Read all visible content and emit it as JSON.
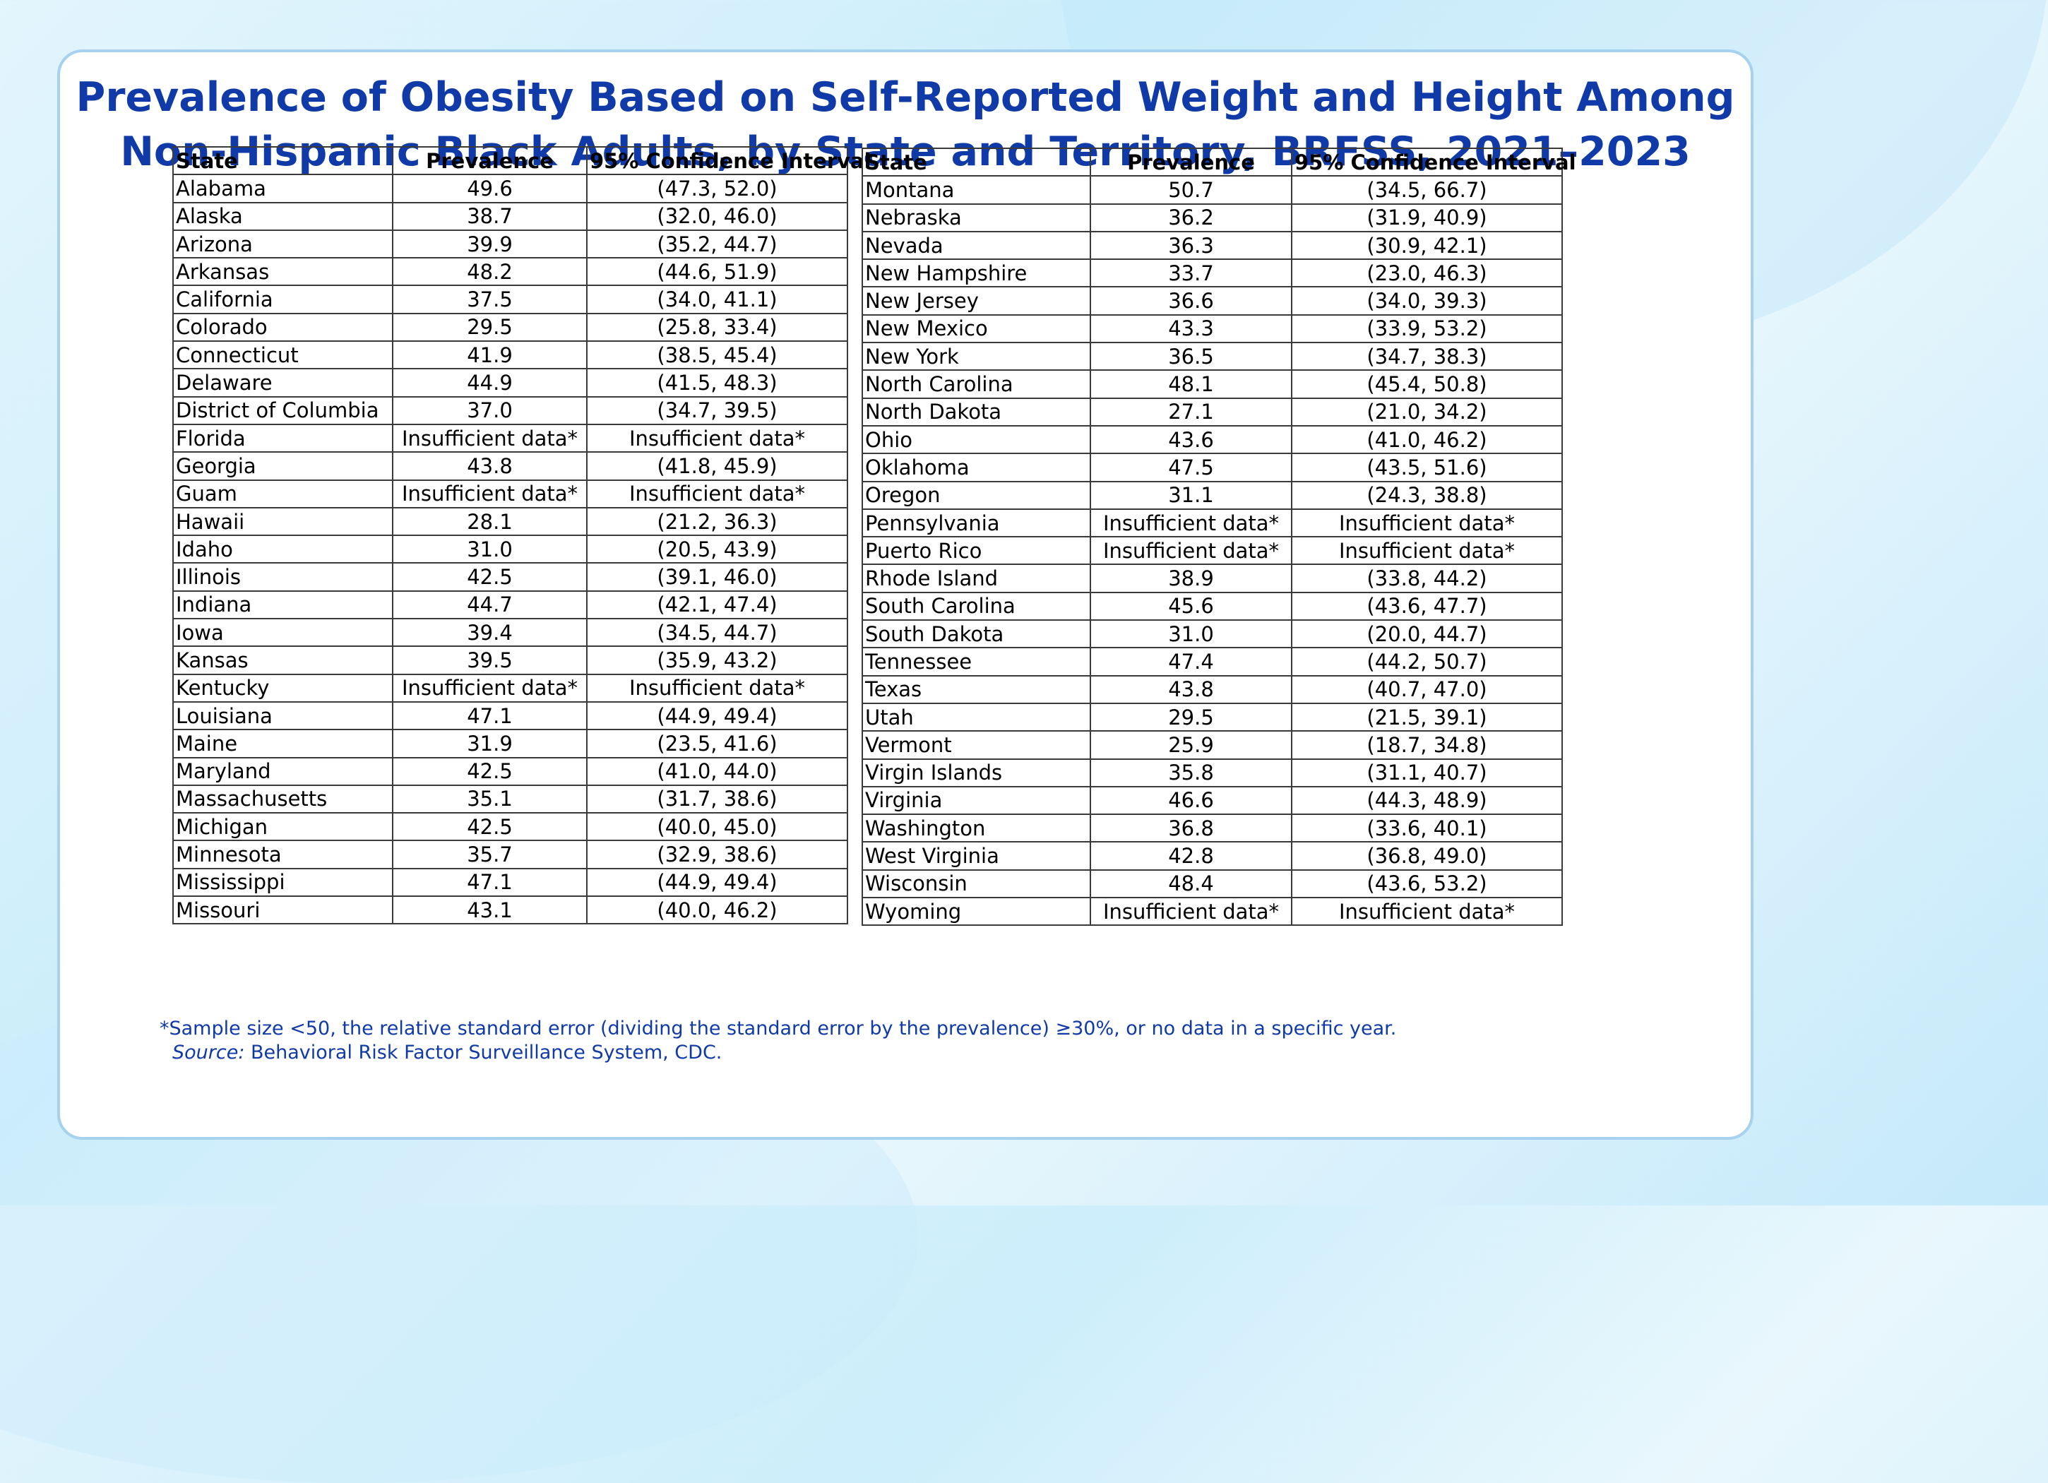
{
  "title_line1": "Prevalence of Obesity Based on Self-Reported Weight and Height Among",
  "title_line2": "Non-Hispanic Black Adults, by State and Territory, BRFSS, 2021–2023",
  "columns": [
    "State",
    "Prevalence",
    "95% Confidence Interval"
  ],
  "footnote": "*Sample size <50, the relative standard error (dividing the standard error by the prevalence) ≥30%, or no data in a specific year.",
  "source_label": "Source:",
  "source_text": " Behavioral Risk Factor Surveillance System, CDC.",
  "colors": {
    "title": "#0f3aa8",
    "footnote": "#0f3aa8",
    "card_border": "#a6d2ef"
  },
  "chart_data": {
    "type": "table",
    "title": "Prevalence of Obesity Based on Self-Reported Weight and Height Among Non-Hispanic Black Adults, by State and Territory, BRFSS, 2021–2023",
    "columns": [
      "State",
      "Prevalence",
      "95% Confidence Interval"
    ],
    "left_rows": [
      [
        "Alabama",
        "49.6",
        "(47.3, 52.0)"
      ],
      [
        "Alaska",
        "38.7",
        "(32.0, 46.0)"
      ],
      [
        "Arizona",
        "39.9",
        "(35.2, 44.7)"
      ],
      [
        "Arkansas",
        "48.2",
        "(44.6, 51.9)"
      ],
      [
        "California",
        "37.5",
        "(34.0, 41.1)"
      ],
      [
        "Colorado",
        "29.5",
        "(25.8, 33.4)"
      ],
      [
        "Connecticut",
        "41.9",
        "(38.5, 45.4)"
      ],
      [
        "Delaware",
        "44.9",
        "(41.5, 48.3)"
      ],
      [
        "District of Columbia",
        "37.0",
        "(34.7, 39.5)"
      ],
      [
        "Florida",
        "Insufficient data*",
        "Insufficient data*"
      ],
      [
        "Georgia",
        "43.8",
        "(41.8, 45.9)"
      ],
      [
        "Guam",
        "Insufficient data*",
        "Insufficient data*"
      ],
      [
        "Hawaii",
        "28.1",
        "(21.2, 36.3)"
      ],
      [
        "Idaho",
        "31.0",
        "(20.5, 43.9)"
      ],
      [
        "Illinois",
        "42.5",
        "(39.1, 46.0)"
      ],
      [
        "Indiana",
        "44.7",
        "(42.1, 47.4)"
      ],
      [
        "Iowa",
        "39.4",
        "(34.5, 44.7)"
      ],
      [
        "Kansas",
        "39.5",
        "(35.9, 43.2)"
      ],
      [
        "Kentucky",
        "Insufficient data*",
        "Insufficient data*"
      ],
      [
        "Louisiana",
        "47.1",
        "(44.9, 49.4)"
      ],
      [
        "Maine",
        "31.9",
        "(23.5, 41.6)"
      ],
      [
        "Maryland",
        "42.5",
        "(41.0, 44.0)"
      ],
      [
        "Massachusetts",
        "35.1",
        "(31.7, 38.6)"
      ],
      [
        "Michigan",
        "42.5",
        "(40.0, 45.0)"
      ],
      [
        "Minnesota",
        "35.7",
        "(32.9, 38.6)"
      ],
      [
        "Mississippi",
        "47.1",
        "(44.9, 49.4)"
      ],
      [
        "Missouri",
        "43.1",
        "(40.0, 46.2)"
      ]
    ],
    "right_rows": [
      [
        "Montana",
        "50.7",
        "(34.5, 66.7)"
      ],
      [
        "Nebraska",
        "36.2",
        "(31.9, 40.9)"
      ],
      [
        "Nevada",
        "36.3",
        "(30.9, 42.1)"
      ],
      [
        "New Hampshire",
        "33.7",
        "(23.0, 46.3)"
      ],
      [
        "New Jersey",
        "36.6",
        "(34.0, 39.3)"
      ],
      [
        "New Mexico",
        "43.3",
        "(33.9, 53.2)"
      ],
      [
        "New York",
        "36.5",
        "(34.7, 38.3)"
      ],
      [
        "North Carolina",
        "48.1",
        "(45.4, 50.8)"
      ],
      [
        "North Dakota",
        "27.1",
        "(21.0, 34.2)"
      ],
      [
        "Ohio",
        "43.6",
        "(41.0, 46.2)"
      ],
      [
        "Oklahoma",
        "47.5",
        "(43.5, 51.6)"
      ],
      [
        "Oregon",
        "31.1",
        "(24.3, 38.8)"
      ],
      [
        "Pennsylvania",
        "Insufficient data*",
        "Insufficient data*"
      ],
      [
        "Puerto Rico",
        "Insufficient data*",
        "Insufficient data*"
      ],
      [
        "Rhode Island",
        "38.9",
        "(33.8, 44.2)"
      ],
      [
        "South Carolina",
        "45.6",
        "(43.6, 47.7)"
      ],
      [
        "South Dakota",
        "31.0",
        "(20.0, 44.7)"
      ],
      [
        "Tennessee",
        "47.4",
        "(44.2, 50.7)"
      ],
      [
        "Texas",
        "43.8",
        "(40.7, 47.0)"
      ],
      [
        "Utah",
        "29.5",
        "(21.5, 39.1)"
      ],
      [
        "Vermont",
        "25.9",
        "(18.7, 34.8)"
      ],
      [
        "Virgin Islands",
        "35.8",
        "(31.1, 40.7)"
      ],
      [
        "Virginia",
        "46.6",
        "(44.3, 48.9)"
      ],
      [
        "Washington",
        "36.8",
        "(33.6, 40.1)"
      ],
      [
        "West Virginia",
        "42.8",
        "(36.8, 49.0)"
      ],
      [
        "Wisconsin",
        "48.4",
        "(43.6, 53.2)"
      ],
      [
        "Wyoming",
        "Insufficient data*",
        "Insufficient data*"
      ]
    ]
  }
}
